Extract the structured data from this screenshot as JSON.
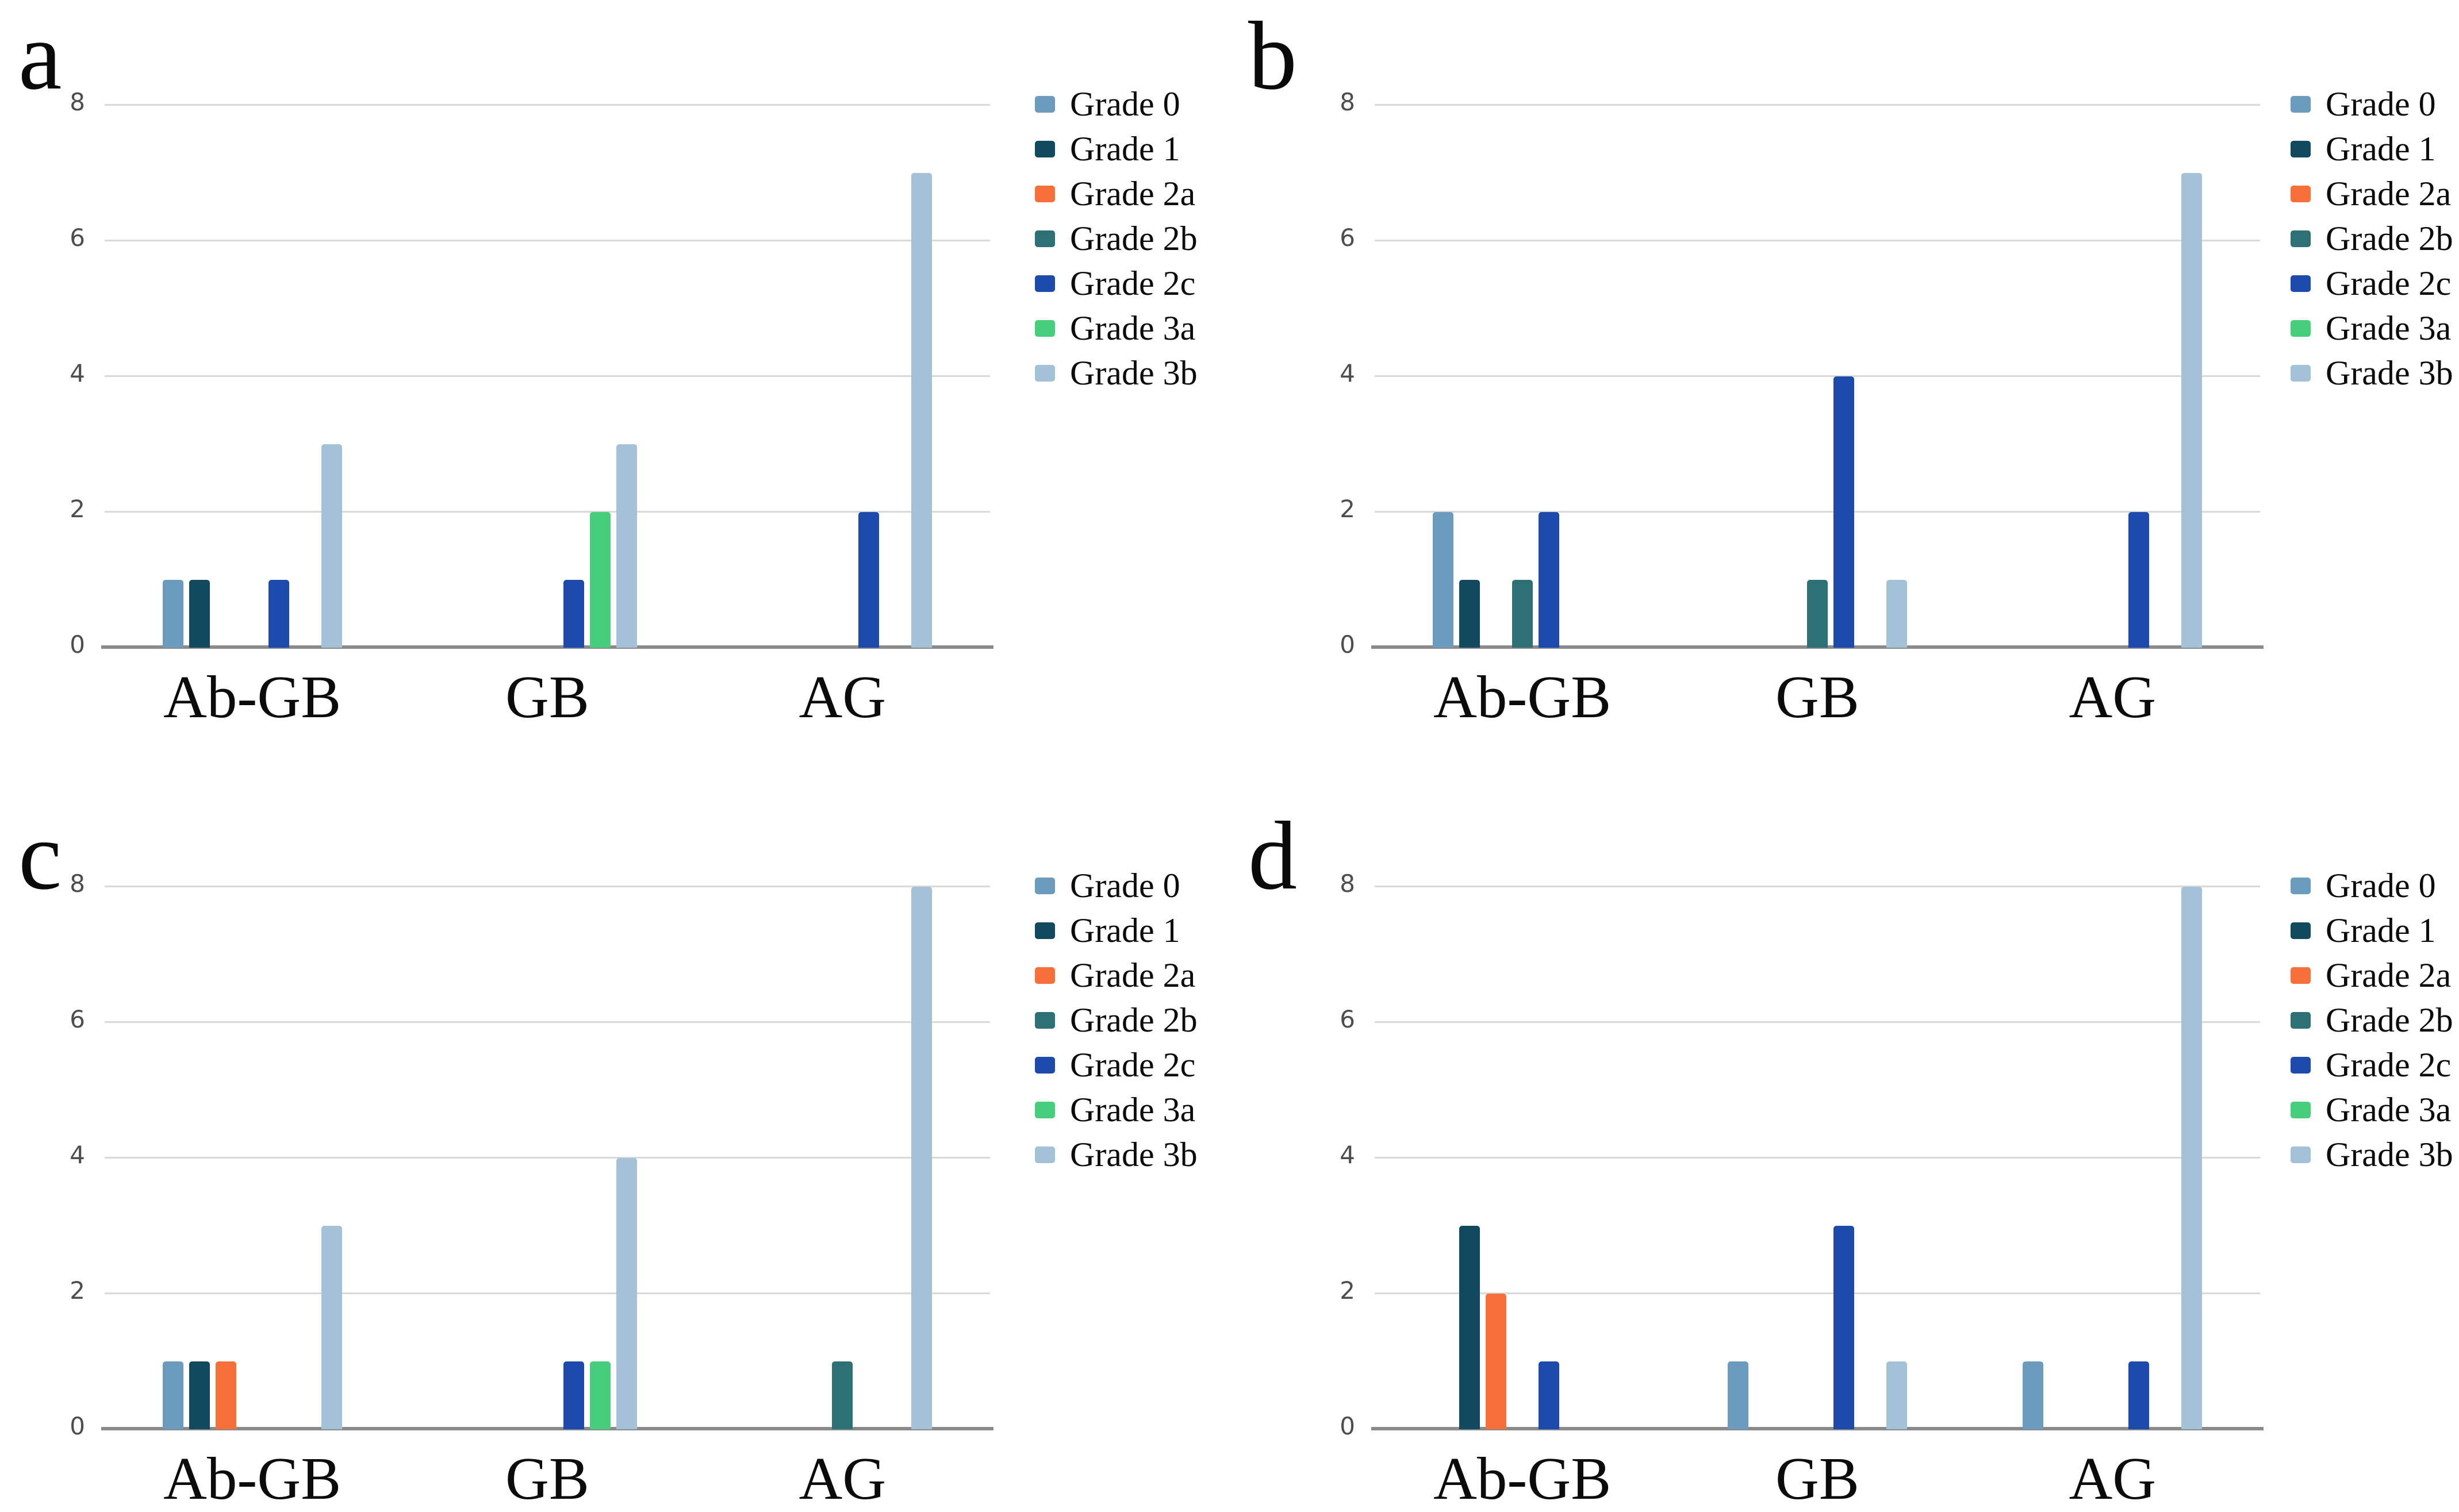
{
  "figure": {
    "background": "#ffffff",
    "grid_color": "#d9d9d9",
    "axis_color": "#8a8a8a",
    "tick_color": "#4d4d4d"
  },
  "legend": {
    "entries": [
      {
        "label": "Grade 0",
        "color": "#6b9cbd"
      },
      {
        "label": "Grade 1",
        "color": "#11495f"
      },
      {
        "label": "Grade 2a",
        "color": "#f7703a"
      },
      {
        "label": "Grade 2b",
        "color": "#2d7177"
      },
      {
        "label": "Grade 2c",
        "color": "#1c4bad"
      },
      {
        "label": "Grade 3a",
        "color": "#47ce7d"
      },
      {
        "label": "Grade 3b",
        "color": "#a3c1d7"
      }
    ]
  },
  "chart_data": [
    {
      "type": "bar",
      "panel_letter": "a",
      "title": "",
      "xlabel": "",
      "ylabel": "",
      "categories": [
        "Ab-GB",
        "GB",
        "AG"
      ],
      "series": [
        {
          "name": "Grade 0",
          "values": [
            1,
            0,
            0
          ]
        },
        {
          "name": "Grade 1",
          "values": [
            1,
            0,
            0
          ]
        },
        {
          "name": "Grade 2a",
          "values": [
            0,
            0,
            0
          ]
        },
        {
          "name": "Grade 2b",
          "values": [
            0,
            0,
            0
          ]
        },
        {
          "name": "Grade 2c",
          "values": [
            1,
            1,
            2
          ]
        },
        {
          "name": "Grade 3a",
          "values": [
            0,
            2,
            0
          ]
        },
        {
          "name": "Grade 3b",
          "values": [
            3,
            3,
            7
          ]
        }
      ],
      "ylim": [
        0,
        8
      ],
      "yticks": [
        0,
        2,
        4,
        6,
        8
      ],
      "grid": true,
      "legend_position": "right"
    },
    {
      "type": "bar",
      "panel_letter": "b",
      "title": "",
      "xlabel": "",
      "ylabel": "",
      "categories": [
        "Ab-GB",
        "GB",
        "AG"
      ],
      "series": [
        {
          "name": "Grade 0",
          "values": [
            2,
            0,
            0
          ]
        },
        {
          "name": "Grade 1",
          "values": [
            1,
            0,
            0
          ]
        },
        {
          "name": "Grade 2a",
          "values": [
            0,
            0,
            0
          ]
        },
        {
          "name": "Grade 2b",
          "values": [
            1,
            1,
            0
          ]
        },
        {
          "name": "Grade 2c",
          "values": [
            2,
            4,
            2
          ]
        },
        {
          "name": "Grade 3a",
          "values": [
            0,
            0,
            0
          ]
        },
        {
          "name": "Grade 3b",
          "values": [
            0,
            1,
            7
          ]
        }
      ],
      "ylim": [
        0,
        8
      ],
      "yticks": [
        0,
        2,
        4,
        6,
        8
      ],
      "grid": true,
      "legend_position": "right"
    },
    {
      "type": "bar",
      "panel_letter": "c",
      "title": "",
      "xlabel": "",
      "ylabel": "",
      "categories": [
        "Ab-GB",
        "GB",
        "AG"
      ],
      "series": [
        {
          "name": "Grade 0",
          "values": [
            1,
            0,
            0
          ]
        },
        {
          "name": "Grade 1",
          "values": [
            1,
            0,
            0
          ]
        },
        {
          "name": "Grade 2a",
          "values": [
            1,
            0,
            0
          ]
        },
        {
          "name": "Grade 2b",
          "values": [
            0,
            0,
            1
          ]
        },
        {
          "name": "Grade 2c",
          "values": [
            0,
            1,
            0
          ]
        },
        {
          "name": "Grade 3a",
          "values": [
            0,
            1,
            0
          ]
        },
        {
          "name": "Grade 3b",
          "values": [
            3,
            4,
            8
          ]
        }
      ],
      "ylim": [
        0,
        8
      ],
      "yticks": [
        0,
        2,
        4,
        6,
        8
      ],
      "grid": true,
      "legend_position": "right"
    },
    {
      "type": "bar",
      "panel_letter": "d",
      "title": "",
      "xlabel": "",
      "ylabel": "",
      "categories": [
        "Ab-GB",
        "GB",
        "AG"
      ],
      "series": [
        {
          "name": "Grade 0",
          "values": [
            0,
            1,
            1
          ]
        },
        {
          "name": "Grade 1",
          "values": [
            3,
            0,
            0
          ]
        },
        {
          "name": "Grade 2a",
          "values": [
            2,
            0,
            0
          ]
        },
        {
          "name": "Grade 2b",
          "values": [
            0,
            0,
            0
          ]
        },
        {
          "name": "Grade 2c",
          "values": [
            1,
            3,
            1
          ]
        },
        {
          "name": "Grade 3a",
          "values": [
            0,
            0,
            0
          ]
        },
        {
          "name": "Grade 3b",
          "values": [
            0,
            1,
            8
          ]
        }
      ],
      "ylim": [
        0,
        8
      ],
      "yticks": [
        0,
        2,
        4,
        6,
        8
      ],
      "grid": true,
      "legend_position": "right"
    }
  ]
}
